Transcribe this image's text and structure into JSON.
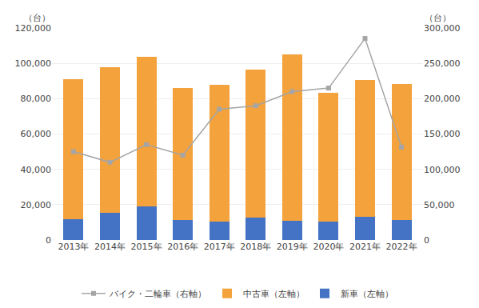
{
  "chart_data": {
    "type": "bar",
    "stacked": true,
    "categories": [
      "2013年",
      "2014年",
      "2015年",
      "2016年",
      "2017年",
      "2018年",
      "2019年",
      "2020年",
      "2021年",
      "2022年"
    ],
    "series": [
      {
        "name": "新車（左軸）",
        "type": "bar",
        "color": "#4472c4",
        "values": [
          12000,
          15500,
          19000,
          11500,
          10500,
          12500,
          11000,
          10500,
          13000,
          11500
        ]
      },
      {
        "name": "中古車（左軸）",
        "type": "bar",
        "color": "#f4a23c",
        "values": [
          79000,
          82500,
          84500,
          74500,
          77500,
          84000,
          94000,
          73000,
          77500,
          77000
        ]
      },
      {
        "name": "バイク・二輪車（右軸）",
        "type": "line",
        "axis": "y2",
        "color": "#a5a5a5",
        "marker": "square",
        "values": [
          125000,
          110000,
          135000,
          120000,
          185000,
          190000,
          210000,
          215000,
          285203,
          131513
        ]
      }
    ],
    "ylabel": "（台）",
    "y2label": "（台）",
    "ylim": [
      0,
      120000
    ],
    "yticks": [
      0,
      {
        "value": 20000,
        "label": "20,000"
      },
      {
        "value": 40000,
        "label": "40,000"
      },
      {
        "value": 60000,
        "label": "60,000"
      },
      {
        "value": 80000,
        "label": "80,000"
      },
      {
        "value": 100000,
        "label": "100,000"
      },
      {
        "value": 120000,
        "label": "120,000"
      }
    ],
    "y2lim": [
      0,
      300000
    ],
    "y2ticks": [
      0,
      {
        "value": 50000,
        "label": "50,000"
      },
      {
        "value": 100000,
        "label": "100,000"
      },
      {
        "value": 150000,
        "label": "150,000"
      },
      {
        "value": 200000,
        "label": "200,000"
      },
      {
        "value": 250000,
        "label": "250,000"
      },
      {
        "value": 300000,
        "label": "300,000"
      }
    ],
    "grid": true,
    "legend": "bottom"
  }
}
